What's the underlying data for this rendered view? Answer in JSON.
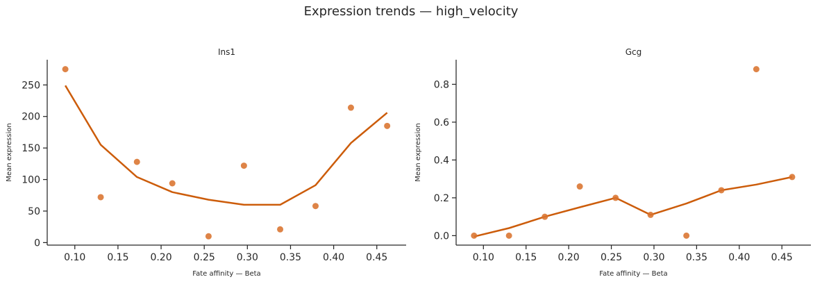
{
  "title": "Expression trends — high_velocity",
  "colors": {
    "marker": "#d9732e",
    "line": "#cc5c0a",
    "axis": "#262626"
  },
  "chart_data": [
    {
      "type": "scatter",
      "title": "Ins1",
      "xlabel": "Fate affinity — Beta",
      "ylabel": "Mean expression",
      "xlim": [
        0.068,
        0.484
      ],
      "ylim": [
        -4,
        290
      ],
      "xticks": [
        0.1,
        0.15,
        0.2,
        0.25,
        0.3,
        0.35,
        0.4,
        0.45
      ],
      "xtick_labels": [
        "0.10",
        "0.15",
        "0.20",
        "0.25",
        "0.30",
        "0.35",
        "0.40",
        "0.45"
      ],
      "yticks": [
        0,
        50,
        100,
        150,
        200,
        250
      ],
      "ytick_labels": [
        "0",
        "50",
        "100",
        "150",
        "200",
        "250"
      ],
      "points": {
        "x": [
          0.089,
          0.13,
          0.172,
          0.213,
          0.255,
          0.296,
          0.338,
          0.379,
          0.42,
          0.462
        ],
        "y": [
          275,
          72,
          128,
          94,
          10,
          122,
          21,
          58,
          214,
          185
        ]
      },
      "trend": {
        "x": [
          0.089,
          0.13,
          0.172,
          0.213,
          0.255,
          0.296,
          0.338,
          0.379,
          0.42,
          0.462
        ],
        "y": [
          249,
          155,
          104,
          80,
          68,
          60,
          60,
          91,
          158,
          206
        ]
      },
      "grid": false
    },
    {
      "type": "scatter",
      "title": "Gcg",
      "xlabel": "Fate affinity — Beta",
      "ylabel": "Mean expression",
      "xlim": [
        0.068,
        0.484
      ],
      "ylim": [
        -0.05,
        0.93
      ],
      "xticks": [
        0.1,
        0.15,
        0.2,
        0.25,
        0.3,
        0.35,
        0.4,
        0.45
      ],
      "xtick_labels": [
        "0.10",
        "0.15",
        "0.20",
        "0.25",
        "0.30",
        "0.35",
        "0.40",
        "0.45"
      ],
      "yticks": [
        0.0,
        0.2,
        0.4,
        0.6,
        0.8
      ],
      "ytick_labels": [
        "0.0",
        "0.2",
        "0.4",
        "0.6",
        "0.8"
      ],
      "points": {
        "x": [
          0.089,
          0.13,
          0.172,
          0.213,
          0.255,
          0.296,
          0.338,
          0.379,
          0.42,
          0.462
        ],
        "y": [
          0.0,
          0.0,
          0.1,
          0.26,
          0.2,
          0.11,
          0.0,
          0.24,
          0.88,
          0.31
        ]
      },
      "trend": {
        "x": [
          0.089,
          0.13,
          0.172,
          0.213,
          0.255,
          0.296,
          0.338,
          0.379,
          0.42,
          0.462
        ],
        "y": [
          -0.005,
          0.04,
          0.1,
          0.15,
          0.2,
          0.11,
          0.17,
          0.24,
          0.27,
          0.31
        ]
      },
      "grid": false
    }
  ]
}
